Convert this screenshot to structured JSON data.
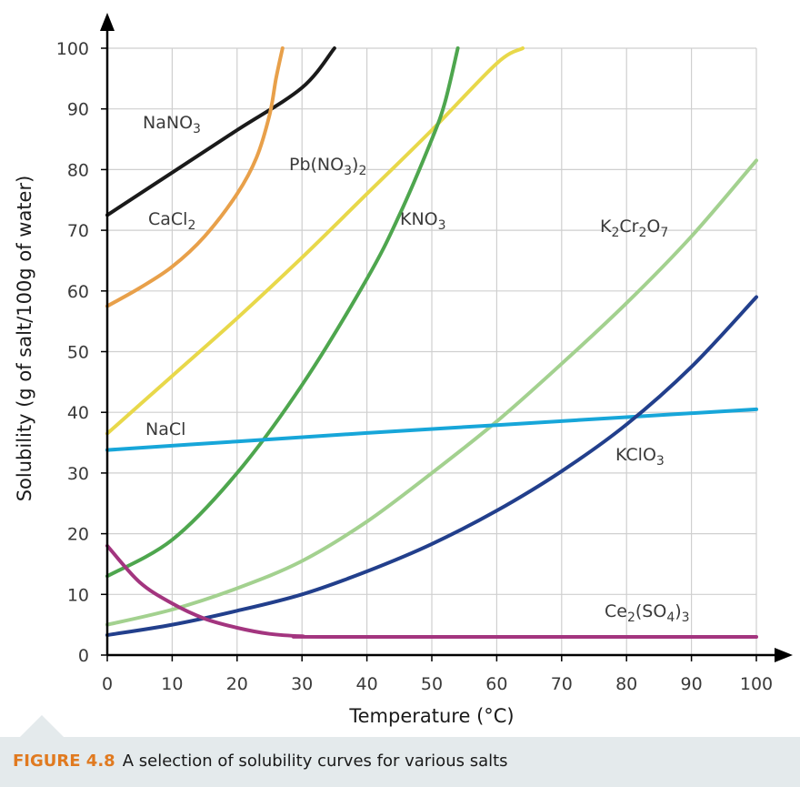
{
  "chart_data": {
    "type": "line",
    "xlabel": "Temperature (°C)",
    "ylabel": "Solubility (g of salt/100g of water)",
    "xlim": [
      0,
      100
    ],
    "ylim": [
      0,
      100
    ],
    "x_ticks": [
      "0",
      "10",
      "20",
      "30",
      "40",
      "50",
      "60",
      "70",
      "80",
      "90",
      "100"
    ],
    "y_ticks": [
      "0",
      "10",
      "20",
      "30",
      "40",
      "50",
      "60",
      "70",
      "80",
      "90",
      "100"
    ],
    "grid": true,
    "legend": "none",
    "series": [
      {
        "name": "NaNO3",
        "label_parts": [
          [
            "NaNO",
            "n"
          ],
          [
            "3",
            "sub"
          ]
        ],
        "color": "#1a1a1a",
        "points": [
          [
            0,
            72.5
          ],
          [
            10,
            79.5
          ],
          [
            20,
            86.5
          ],
          [
            30,
            93.5
          ],
          [
            35,
            100
          ]
        ]
      },
      {
        "name": "CaCl2",
        "label_parts": [
          [
            "CaCl",
            "n"
          ],
          [
            "2",
            "sub"
          ]
        ],
        "color": "#e8a04a",
        "points": [
          [
            0,
            57.5
          ],
          [
            5,
            60.5
          ],
          [
            10,
            64
          ],
          [
            15,
            69
          ],
          [
            20,
            76
          ],
          [
            23,
            82
          ],
          [
            25,
            89
          ],
          [
            26,
            95
          ],
          [
            27,
            100
          ]
        ]
      },
      {
        "name": "Pb(NO3)2",
        "label_parts": [
          [
            "Pb(NO",
            "n"
          ],
          [
            "3",
            "sub"
          ],
          [
            ")",
            "n"
          ],
          [
            "2",
            "sub"
          ]
        ],
        "color": "#e8d84a",
        "points": [
          [
            0,
            36.5
          ],
          [
            10,
            46
          ],
          [
            20,
            55.5
          ],
          [
            30,
            65.5
          ],
          [
            40,
            76
          ],
          [
            50,
            86.5
          ],
          [
            60,
            97.5
          ],
          [
            64,
            100
          ]
        ]
      },
      {
        "name": "KNO3",
        "label_parts": [
          [
            "KNO",
            "n"
          ],
          [
            "3",
            "sub"
          ]
        ],
        "color": "#4ea64e",
        "points": [
          [
            0,
            13
          ],
          [
            10,
            19
          ],
          [
            20,
            30
          ],
          [
            30,
            44.5
          ],
          [
            40,
            62
          ],
          [
            45,
            72.5
          ],
          [
            50,
            85
          ],
          [
            52,
            91
          ],
          [
            54,
            100
          ]
        ]
      },
      {
        "name": "K2Cr2O7",
        "label_parts": [
          [
            "K",
            "n"
          ],
          [
            "2",
            "sub"
          ],
          [
            "Cr",
            "n"
          ],
          [
            "2",
            "sub"
          ],
          [
            "O",
            "n"
          ],
          [
            "7",
            "sub"
          ]
        ],
        "color": "#a3d18f",
        "points": [
          [
            0,
            5
          ],
          [
            10,
            7.5
          ],
          [
            20,
            11
          ],
          [
            30,
            15.5
          ],
          [
            40,
            22
          ],
          [
            50,
            30
          ],
          [
            60,
            38.5
          ],
          [
            70,
            48
          ],
          [
            80,
            58
          ],
          [
            90,
            69
          ],
          [
            100,
            81.5
          ]
        ]
      },
      {
        "name": "NaCl",
        "label_parts": [
          [
            "NaCl",
            "n"
          ]
        ],
        "color": "#17a6d9",
        "points": [
          [
            0,
            33.8
          ],
          [
            20,
            35.2
          ],
          [
            40,
            36.6
          ],
          [
            60,
            37.9
          ],
          [
            80,
            39.2
          ],
          [
            100,
            40.5
          ]
        ]
      },
      {
        "name": "KClO3",
        "label_parts": [
          [
            "KClO",
            "n"
          ],
          [
            "3",
            "sub"
          ]
        ],
        "color": "#223f8c",
        "points": [
          [
            0,
            3.3
          ],
          [
            10,
            5
          ],
          [
            20,
            7.3
          ],
          [
            30,
            10
          ],
          [
            40,
            13.8
          ],
          [
            50,
            18.3
          ],
          [
            60,
            23.8
          ],
          [
            70,
            30.3
          ],
          [
            80,
            38
          ],
          [
            90,
            47.5
          ],
          [
            100,
            59
          ]
        ]
      },
      {
        "name": "Ce2(SO4)3",
        "label_parts": [
          [
            "Ce",
            "n"
          ],
          [
            "2",
            "sub"
          ],
          [
            "(SO",
            "n"
          ],
          [
            "4",
            "sub"
          ],
          [
            ")",
            "n"
          ],
          [
            "3",
            "sub"
          ]
        ],
        "color": "#a3357f",
        "points": [
          [
            0,
            18
          ],
          [
            5,
            12
          ],
          [
            10,
            8.5
          ],
          [
            15,
            6
          ],
          [
            20,
            4.5
          ],
          [
            25,
            3.5
          ],
          [
            30,
            3.1
          ],
          [
            35,
            3
          ],
          [
            100,
            3
          ]
        ]
      }
    ]
  },
  "caption": {
    "label": "FIGURE 4.8",
    "text": "A selection of solubility curves for various salts"
  }
}
